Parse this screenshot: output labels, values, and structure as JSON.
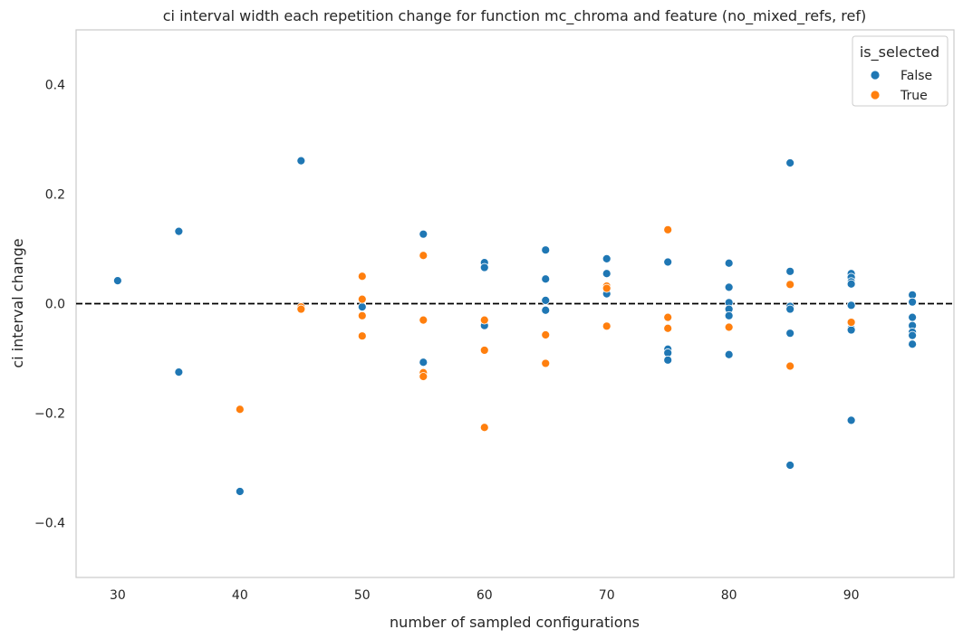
{
  "chart_data": {
    "type": "scatter",
    "title": "ci interval width each repetition change for function mc_chroma and feature (no_mixed_refs, ref)",
    "xlabel": "number of sampled configurations",
    "ylabel": "ci interval change",
    "xlim": [
      26.6,
      98.4
    ],
    "ylim": [
      -0.5,
      0.5
    ],
    "xticks": [
      30,
      40,
      50,
      60,
      70,
      80,
      90
    ],
    "yticks": [
      -0.4,
      -0.2,
      0.0,
      0.2,
      0.4
    ],
    "ytick_labels": [
      "−0.4",
      "−0.2",
      "0.0",
      "0.2",
      "0.4"
    ],
    "reference_line": {
      "y": 0,
      "style": "dashed",
      "color": "#000000"
    },
    "grid": false,
    "legend": {
      "title": "is_selected",
      "placement": "top-right"
    },
    "series": [
      {
        "name": "False",
        "color": "#1f77b4",
        "points": [
          [
            30,
            0.042
          ],
          [
            35,
            0.132
          ],
          [
            35,
            -0.125
          ],
          [
            40,
            -0.343
          ],
          [
            45,
            0.261
          ],
          [
            50,
            -0.006
          ],
          [
            55,
            0.127
          ],
          [
            55,
            -0.107
          ],
          [
            60,
            0.075
          ],
          [
            60,
            0.066
          ],
          [
            60,
            -0.04
          ],
          [
            65,
            0.098
          ],
          [
            65,
            0.045
          ],
          [
            65,
            0.006
          ],
          [
            65,
            -0.012
          ],
          [
            70,
            0.082
          ],
          [
            70,
            0.055
          ],
          [
            70,
            0.018
          ],
          [
            75,
            0.076
          ],
          [
            75,
            -0.083
          ],
          [
            75,
            -0.09
          ],
          [
            75,
            -0.103
          ],
          [
            80,
            0.074
          ],
          [
            80,
            0.03
          ],
          [
            80,
            0.002
          ],
          [
            80,
            -0.01
          ],
          [
            80,
            -0.022
          ],
          [
            80,
            -0.093
          ],
          [
            85,
            0.257
          ],
          [
            85,
            0.059
          ],
          [
            85,
            -0.005
          ],
          [
            85,
            -0.01
          ],
          [
            85,
            -0.054
          ],
          [
            85,
            -0.295
          ],
          [
            90,
            0.055
          ],
          [
            90,
            0.048
          ],
          [
            90,
            0.04
          ],
          [
            90,
            0.036
          ],
          [
            90,
            -0.003
          ],
          [
            90,
            -0.045
          ],
          [
            90,
            -0.048
          ],
          [
            90,
            -0.213
          ],
          [
            95,
            0.016
          ],
          [
            95,
            0.003
          ],
          [
            95,
            -0.025
          ],
          [
            95,
            -0.04
          ],
          [
            95,
            -0.052
          ],
          [
            95,
            -0.058
          ],
          [
            95,
            -0.074
          ]
        ]
      },
      {
        "name": "True",
        "color": "#ff7f0e",
        "points": [
          [
            40,
            -0.193
          ],
          [
            45,
            -0.006
          ],
          [
            45,
            -0.01
          ],
          [
            50,
            0.05
          ],
          [
            50,
            0.008
          ],
          [
            50,
            -0.022
          ],
          [
            50,
            -0.059
          ],
          [
            55,
            0.088
          ],
          [
            55,
            -0.03
          ],
          [
            55,
            -0.126
          ],
          [
            55,
            -0.133
          ],
          [
            60,
            -0.03
          ],
          [
            60,
            -0.085
          ],
          [
            60,
            -0.226
          ],
          [
            65,
            -0.057
          ],
          [
            65,
            -0.109
          ],
          [
            70,
            0.032
          ],
          [
            70,
            0.028
          ],
          [
            70,
            -0.041
          ],
          [
            75,
            0.135
          ],
          [
            75,
            -0.025
          ],
          [
            75,
            -0.045
          ],
          [
            80,
            -0.043
          ],
          [
            85,
            0.035
          ],
          [
            85,
            -0.114
          ],
          [
            90,
            -0.034
          ]
        ]
      }
    ]
  }
}
